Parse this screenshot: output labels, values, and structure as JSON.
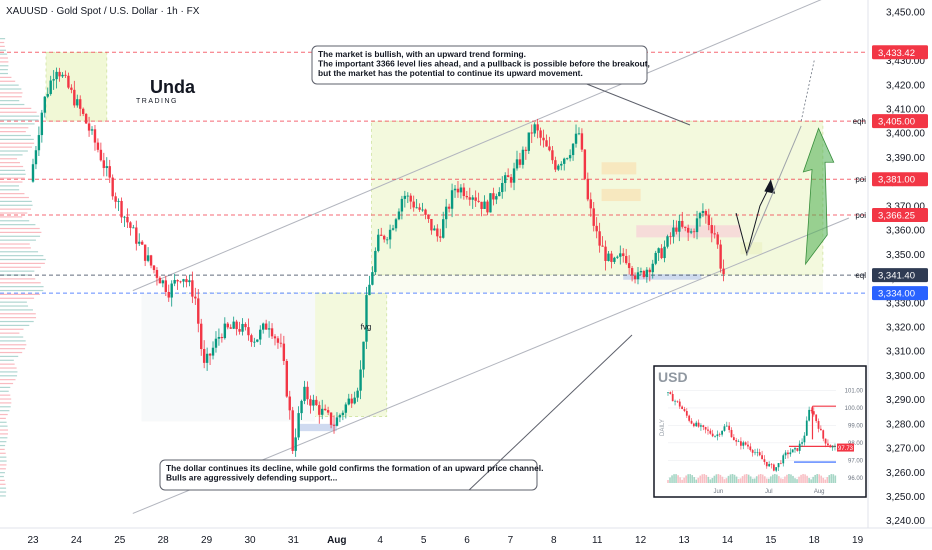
{
  "chart_data": {
    "type": "candlestick",
    "title": "XAUUSD · Gold Spot / U.S. Dollar · 1h · FX",
    "x_tick_labels": [
      "23",
      "24",
      "25",
      "28",
      "29",
      "30",
      "31",
      "Aug",
      "4",
      "5",
      "6",
      "7",
      "8",
      "11",
      "12",
      "13",
      "14",
      "15",
      "18",
      "19"
    ],
    "y_tick_values": [
      3240,
      3250,
      3260,
      3270,
      3280,
      3290,
      3300,
      3310,
      3320,
      3330,
      3340,
      3350,
      3360,
      3370,
      3380,
      3390,
      3400,
      3410,
      3420,
      3430,
      3450
    ],
    "y_tick_labels": [
      "3,240.00",
      "3,250.00",
      "3,260.00",
      "3,270.00",
      "3,280.00",
      "3,290.00",
      "3,300.00",
      "3,310.00",
      "3,320.00",
      "3,330.00",
      "3,340.00",
      "3,350.00",
      "3,360.00",
      "3,370.00",
      "3,380.00",
      "3,390.00",
      "3,400.00",
      "3,410.00",
      "3,420.00",
      "3,430.00",
      "3,450.00"
    ],
    "ylim": [
      3237,
      3455
    ],
    "price_path": [
      {
        "x": 0.0,
        "y": 3380
      },
      {
        "x": 0.3,
        "y": 3412
      },
      {
        "x": 0.6,
        "y": 3428
      },
      {
        "x": 0.9,
        "y": 3418
      },
      {
        "x": 1.2,
        "y": 3408
      },
      {
        "x": 1.6,
        "y": 3392
      },
      {
        "x": 2.0,
        "y": 3372
      },
      {
        "x": 2.4,
        "y": 3358
      },
      {
        "x": 2.8,
        "y": 3345
      },
      {
        "x": 3.2,
        "y": 3335
      },
      {
        "x": 3.5,
        "y": 3342
      },
      {
        "x": 3.8,
        "y": 3333
      },
      {
        "x": 4.0,
        "y": 3303
      },
      {
        "x": 4.4,
        "y": 3318
      },
      {
        "x": 4.8,
        "y": 3320
      },
      {
        "x": 5.2,
        "y": 3315
      },
      {
        "x": 5.5,
        "y": 3322
      },
      {
        "x": 5.8,
        "y": 3310
      },
      {
        "x": 6.0,
        "y": 3282
      },
      {
        "x": 6.05,
        "y": 3270
      },
      {
        "x": 6.3,
        "y": 3293
      },
      {
        "x": 6.6,
        "y": 3287
      },
      {
        "x": 7.0,
        "y": 3280
      },
      {
        "x": 7.4,
        "y": 3291
      },
      {
        "x": 7.6,
        "y": 3298
      },
      {
        "x": 7.75,
        "y": 3330
      },
      {
        "x": 8.0,
        "y": 3355
      },
      {
        "x": 8.3,
        "y": 3360
      },
      {
        "x": 8.6,
        "y": 3375
      },
      {
        "x": 9.0,
        "y": 3368
      },
      {
        "x": 9.4,
        "y": 3357
      },
      {
        "x": 9.8,
        "y": 3378
      },
      {
        "x": 10.2,
        "y": 3375
      },
      {
        "x": 10.5,
        "y": 3369
      },
      {
        "x": 10.8,
        "y": 3378
      },
      {
        "x": 11.1,
        "y": 3382
      },
      {
        "x": 11.4,
        "y": 3393
      },
      {
        "x": 11.6,
        "y": 3403
      },
      {
        "x": 11.85,
        "y": 3395
      },
      {
        "x": 12.1,
        "y": 3387
      },
      {
        "x": 12.4,
        "y": 3392
      },
      {
        "x": 12.65,
        "y": 3400
      },
      {
        "x": 12.85,
        "y": 3372
      },
      {
        "x": 13.1,
        "y": 3355
      },
      {
        "x": 13.4,
        "y": 3345
      },
      {
        "x": 13.7,
        "y": 3350
      },
      {
        "x": 14.0,
        "y": 3340
      },
      {
        "x": 14.3,
        "y": 3346
      },
      {
        "x": 14.6,
        "y": 3352
      },
      {
        "x": 14.9,
        "y": 3362
      },
      {
        "x": 15.2,
        "y": 3358
      },
      {
        "x": 15.5,
        "y": 3368
      },
      {
        "x": 15.8,
        "y": 3358
      },
      {
        "x": 15.95,
        "y": 3342
      }
    ],
    "levels": [
      {
        "value": 3433.42,
        "label": "3,433.42",
        "color": "#f23645",
        "side": ""
      },
      {
        "value": 3405.0,
        "label": "3,405.00",
        "color": "#f23645",
        "side": "eqh"
      },
      {
        "value": 3381.0,
        "label": "3,381.00",
        "color": "#f23645",
        "side": "poi"
      },
      {
        "value": 3366.25,
        "label": "3,366.25",
        "color": "#f23645",
        "side": "poi"
      },
      {
        "value": 3341.4,
        "label": "3,341.40",
        "color": "#2f3b53",
        "side": "eql"
      },
      {
        "value": 3334.0,
        "label": "3,334.00",
        "color": "#2962ff",
        "side": ""
      }
    ],
    "annotations": {
      "top": [
        "The market is bullish, with an upward trend forming.",
        "The important 3366 level lies ahead, and a pullback is possible before the breakout,",
        "but the market has the potential to continue its upward movement."
      ],
      "bottom": [
        "The dollar continues its decline, while gold confirms the formation of an upward price channel.",
        "Bulls are aggressively defending support..."
      ],
      "fvg_label": "fvg"
    },
    "inset": {
      "title": "USD",
      "period_label": "DAILY",
      "x_tick_labels": [
        "Jun",
        "Jul",
        "Aug"
      ],
      "y_tick_values": [
        96,
        97,
        98,
        99,
        100,
        101
      ],
      "y_tick_labels": [
        "96.00",
        "97.00",
        "98.00",
        "99.00",
        "100.00",
        "101.00"
      ],
      "ylim": [
        95.7,
        101.6
      ],
      "last_value": "97.73",
      "path": [
        {
          "x": 0.0,
          "y": 100.9
        },
        {
          "x": 0.08,
          "y": 100.2
        },
        {
          "x": 0.15,
          "y": 99.2
        },
        {
          "x": 0.22,
          "y": 98.8
        },
        {
          "x": 0.3,
          "y": 98.4
        },
        {
          "x": 0.36,
          "y": 99.0
        },
        {
          "x": 0.42,
          "y": 98.0
        },
        {
          "x": 0.48,
          "y": 97.9
        },
        {
          "x": 0.55,
          "y": 97.3
        },
        {
          "x": 0.6,
          "y": 96.8
        },
        {
          "x": 0.65,
          "y": 96.5
        },
        {
          "x": 0.72,
          "y": 97.4
        },
        {
          "x": 0.78,
          "y": 97.6
        },
        {
          "x": 0.82,
          "y": 98.2
        },
        {
          "x": 0.86,
          "y": 100.1
        },
        {
          "x": 0.9,
          "y": 99.2
        },
        {
          "x": 0.94,
          "y": 98.2
        },
        {
          "x": 0.98,
          "y": 97.8
        },
        {
          "x": 1.0,
          "y": 97.73
        }
      ]
    }
  },
  "colors": {
    "up": "#089981",
    "down": "#f23645",
    "channel": "#b2b5be",
    "zone": "#f1f8d6",
    "green_arrow": "#4caf50"
  },
  "logo": "Unda TRADING"
}
